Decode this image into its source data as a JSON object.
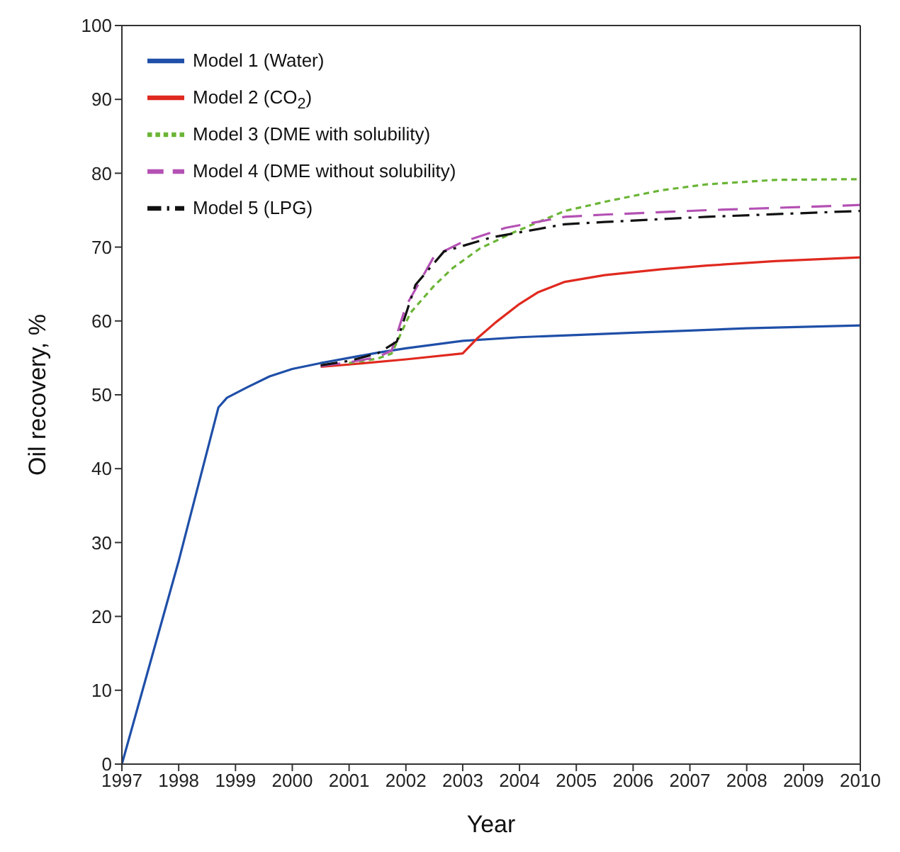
{
  "chart_data": {
    "type": "line",
    "xlabel": "Year",
    "ylabel": "Oil recovery, %",
    "xlim": [
      1997,
      2010
    ],
    "xticks": [
      1997,
      1998,
      1999,
      2000,
      2001,
      2002,
      2003,
      2004,
      2005,
      2006,
      2007,
      2008,
      2009,
      2010
    ],
    "ylim": [
      0,
      100
    ],
    "yticks": [
      0,
      10,
      20,
      30,
      40,
      50,
      60,
      70,
      80,
      90,
      100
    ],
    "grid": false,
    "legend": "top left",
    "marker": "none",
    "series": [
      {
        "name": "Model 1 (Water)",
        "color": "#1f4fa8",
        "line_style": "solid",
        "x": [
          1997,
          1998,
          1998.7,
          1998.85,
          1999.2,
          1999.6,
          2000,
          2000.5,
          2001,
          2001.5,
          2002,
          2002.5,
          2003,
          2004,
          2005,
          2006,
          2007,
          2008,
          2009,
          2010
        ],
        "values": [
          0,
          27.5,
          48.3,
          49.6,
          51,
          52.5,
          53.5,
          54.3,
          55,
          55.7,
          56.3,
          56.8,
          57.3,
          57.8,
          58.1,
          58.4,
          58.7,
          59,
          59.2,
          59.4
        ]
      },
      {
        "name": "Model 2 (CO$_{2}$)",
        "color": "#e0291f",
        "line_style": "solid",
        "x": [
          2000.5,
          2001,
          2002,
          2003,
          2003.25,
          2003.58,
          2004,
          2004.33,
          2004.8,
          2005.5,
          2006.5,
          2007.3,
          2008.5,
          2010
        ],
        "values": [
          53.8,
          54.1,
          54.8,
          55.6,
          57.6,
          59.8,
          62.3,
          63.9,
          65.3,
          66.2,
          67,
          67.5,
          68.1,
          68.6
        ]
      },
      {
        "name": "Model 3 (DME with solubility)",
        "color": "#6bb536",
        "line_style": "dashed",
        "x": [
          2001,
          2001.5,
          2001.75,
          2002.08,
          2002.5,
          2002.83,
          2003.3,
          2003.9,
          2004.8,
          2005.6,
          2006.5,
          2007.3,
          2008.5,
          2010
        ],
        "values": [
          54.3,
          54.9,
          55.6,
          61.1,
          64.8,
          67.2,
          69.8,
          72,
          74.9,
          76.3,
          77.7,
          78.5,
          79.1,
          79.2
        ]
      },
      {
        "name": "Model 4 (DME without solubility)",
        "color": "#b451b4",
        "line_style": "dashed",
        "x": [
          2000.5,
          2001,
          2001.5,
          2001.75,
          2002,
          2002.5,
          2003,
          2003.75,
          2004.8,
          2005.5,
          2007.3,
          2010
        ],
        "values": [
          53.9,
          54.4,
          55.1,
          56,
          62,
          68.8,
          70.7,
          72.6,
          74.1,
          74.4,
          75,
          75.7
        ]
      },
      {
        "name": "Model 5 (LPG)",
        "color": "#111111",
        "line_style": "dashed",
        "x": [
          2000.5,
          2001,
          2001.5,
          2001.84,
          2002.17,
          2002.67,
          2003.5,
          2004.8,
          2005.5,
          2007.3,
          2010
        ],
        "values": [
          54,
          54.6,
          55.6,
          57.2,
          64.9,
          69.4,
          71.3,
          73.1,
          73.4,
          74.1,
          74.9
        ]
      }
    ]
  }
}
